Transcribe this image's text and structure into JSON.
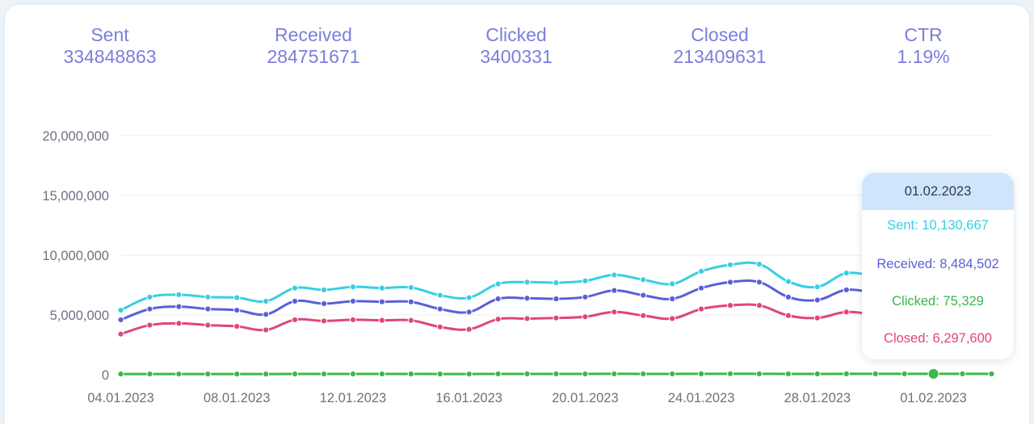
{
  "stats": [
    {
      "label": "Sent",
      "value": "334848863"
    },
    {
      "label": "Received",
      "value": "284751671"
    },
    {
      "label": "Clicked",
      "value": "3400331"
    },
    {
      "label": "Closed",
      "value": "213409631"
    },
    {
      "label": "CTR",
      "value": "1.19%"
    }
  ],
  "colors": {
    "sent": "#36cfe3",
    "received": "#5b5fd6",
    "clicked": "#37b94b",
    "closed": "#e0457b",
    "stat_text": "#7b7fdc",
    "grid": "#e9edf2"
  },
  "tooltip": {
    "date": "01.02.2023",
    "sent": "Sent: 10,130,667",
    "received": "Received: 8,484,502",
    "clicked": "Clicked: 75,329",
    "closed": "Closed: 6,297,600"
  },
  "chart_data": {
    "type": "line",
    "x": [
      "04.01.2023",
      "05.01.2023",
      "06.01.2023",
      "07.01.2023",
      "08.01.2023",
      "09.01.2023",
      "10.01.2023",
      "11.01.2023",
      "12.01.2023",
      "13.01.2023",
      "14.01.2023",
      "15.01.2023",
      "16.01.2023",
      "17.01.2023",
      "18.01.2023",
      "19.01.2023",
      "20.01.2023",
      "21.01.2023",
      "22.01.2023",
      "23.01.2023",
      "24.01.2023",
      "25.01.2023",
      "26.01.2023",
      "27.01.2023",
      "28.01.2023",
      "29.01.2023",
      "30.01.2023",
      "31.01.2023",
      "01.02.2023",
      "02.02.2023",
      "03.02.2023"
    ],
    "x_tick_labels": [
      "04.01.2023",
      "08.01.2023",
      "12.01.2023",
      "16.01.2023",
      "20.01.2023",
      "24.01.2023",
      "28.01.2023",
      "01.02.2023"
    ],
    "y_tick_labels": [
      "0",
      "5,000,000",
      "10,000,000",
      "15,000,000",
      "20,000,000"
    ],
    "ylim": [
      0,
      20000000
    ],
    "grid": true,
    "series": [
      {
        "name": "Sent",
        "values": [
          5400000,
          6500000,
          6700000,
          6500000,
          6450000,
          6150000,
          7250000,
          7100000,
          7350000,
          7250000,
          7300000,
          6650000,
          6450000,
          7600000,
          7750000,
          7700000,
          7850000,
          8350000,
          7950000,
          7600000,
          8650000,
          9200000,
          9250000,
          7800000,
          7350000,
          8500000,
          8200000,
          null,
          10130667,
          null,
          null
        ]
      },
      {
        "name": "Received",
        "values": [
          4600000,
          5500000,
          5700000,
          5500000,
          5400000,
          5050000,
          6150000,
          5950000,
          6150000,
          6100000,
          6100000,
          5500000,
          5250000,
          6350000,
          6400000,
          6350000,
          6500000,
          7050000,
          6650000,
          6350000,
          7250000,
          7750000,
          7750000,
          6500000,
          6250000,
          7100000,
          6800000,
          null,
          8484502,
          null,
          null
        ]
      },
      {
        "name": "Clicked",
        "values": [
          60000,
          62000,
          63000,
          62000,
          61000,
          58000,
          66000,
          65000,
          66000,
          66000,
          66000,
          62000,
          60000,
          68000,
          69000,
          69000,
          70000,
          74000,
          71000,
          69000,
          76000,
          80000,
          80000,
          70000,
          68000,
          75000,
          74000,
          76000,
          75329,
          74000,
          72000
        ]
      },
      {
        "name": "Closed",
        "values": [
          3400000,
          4150000,
          4300000,
          4150000,
          4050000,
          3750000,
          4600000,
          4500000,
          4600000,
          4550000,
          4550000,
          4000000,
          3800000,
          4650000,
          4700000,
          4750000,
          4850000,
          5250000,
          4950000,
          4700000,
          5500000,
          5800000,
          5800000,
          4950000,
          4750000,
          5250000,
          5000000,
          null,
          6297600,
          null,
          null
        ]
      }
    ]
  }
}
